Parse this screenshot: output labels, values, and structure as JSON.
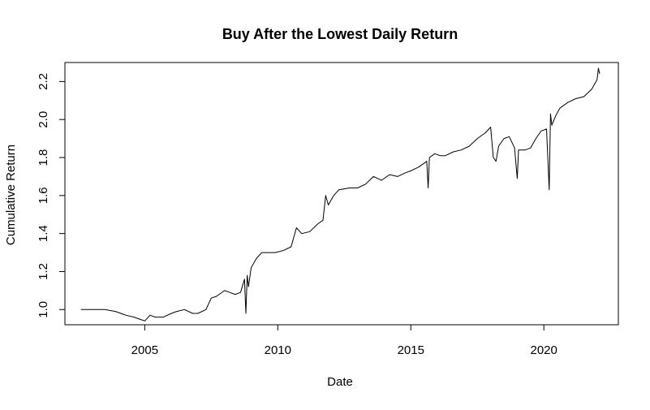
{
  "chart_data": {
    "type": "line",
    "title": "Buy After the Lowest Daily Return",
    "xlabel": "Date",
    "ylabel": "Cumulative Return",
    "xlim": [
      2002.0,
      2022.8
    ],
    "ylim": [
      0.92,
      2.3
    ],
    "x_ticks": [
      2005,
      2010,
      2015,
      2020
    ],
    "x_tick_labels": [
      "2005",
      "2010",
      "2015",
      "2020"
    ],
    "y_ticks": [
      1.0,
      1.2,
      1.4,
      1.6,
      1.8,
      2.0,
      2.2
    ],
    "y_tick_labels": [
      "1.0",
      "1.2",
      "1.4",
      "1.6",
      "1.8",
      "2.0",
      "2.2"
    ],
    "grid": false,
    "legend": "none",
    "line_color": "#000000",
    "series": [
      {
        "x": [
          2002.6,
          2003.0,
          2003.5,
          2003.9,
          2004.1,
          2004.3,
          2004.6,
          2004.8,
          2005.0,
          2005.2,
          2005.4,
          2005.7,
          2006.0,
          2006.2,
          2006.5,
          2006.8,
          2007.0,
          2007.3,
          2007.5,
          2007.7,
          2008.0,
          2008.2,
          2008.4,
          2008.6,
          2008.75,
          2008.8,
          2008.85,
          2008.9,
          2009.0,
          2009.2,
          2009.4,
          2009.6,
          2009.9,
          2010.2,
          2010.5,
          2010.7,
          2010.9,
          2011.2,
          2011.5,
          2011.7,
          2011.8,
          2011.9,
          2012.1,
          2012.3,
          2012.7,
          2013.0,
          2013.3,
          2013.6,
          2013.9,
          2014.2,
          2014.5,
          2014.8,
          2015.0,
          2015.3,
          2015.6,
          2015.65,
          2015.7,
          2015.9,
          2016.1,
          2016.3,
          2016.6,
          2016.9,
          2017.2,
          2017.5,
          2017.8,
          2018.0,
          2018.1,
          2018.2,
          2018.3,
          2018.5,
          2018.7,
          2018.9,
          2019.0,
          2019.05,
          2019.3,
          2019.5,
          2019.7,
          2019.9,
          2020.1,
          2020.2,
          2020.25,
          2020.3,
          2020.45,
          2020.6,
          2020.9,
          2021.2,
          2021.5,
          2021.8,
          2022.0,
          2022.05,
          2022.1
        ],
        "y": [
          1.0,
          1.0,
          1.0,
          0.99,
          0.98,
          0.97,
          0.96,
          0.95,
          0.94,
          0.97,
          0.96,
          0.96,
          0.98,
          0.99,
          1.0,
          0.98,
          0.98,
          1.0,
          1.06,
          1.07,
          1.1,
          1.09,
          1.08,
          1.09,
          1.16,
          0.98,
          1.18,
          1.12,
          1.22,
          1.27,
          1.3,
          1.3,
          1.3,
          1.31,
          1.33,
          1.43,
          1.4,
          1.41,
          1.45,
          1.47,
          1.6,
          1.55,
          1.6,
          1.63,
          1.64,
          1.64,
          1.66,
          1.7,
          1.68,
          1.71,
          1.7,
          1.72,
          1.73,
          1.75,
          1.78,
          1.64,
          1.8,
          1.82,
          1.81,
          1.81,
          1.83,
          1.84,
          1.86,
          1.9,
          1.93,
          1.96,
          1.8,
          1.78,
          1.86,
          1.9,
          1.91,
          1.85,
          1.69,
          1.84,
          1.84,
          1.85,
          1.9,
          1.94,
          1.95,
          1.63,
          2.03,
          1.97,
          2.02,
          2.06,
          2.09,
          2.11,
          2.12,
          2.16,
          2.21,
          2.27,
          2.24
        ]
      }
    ]
  }
}
